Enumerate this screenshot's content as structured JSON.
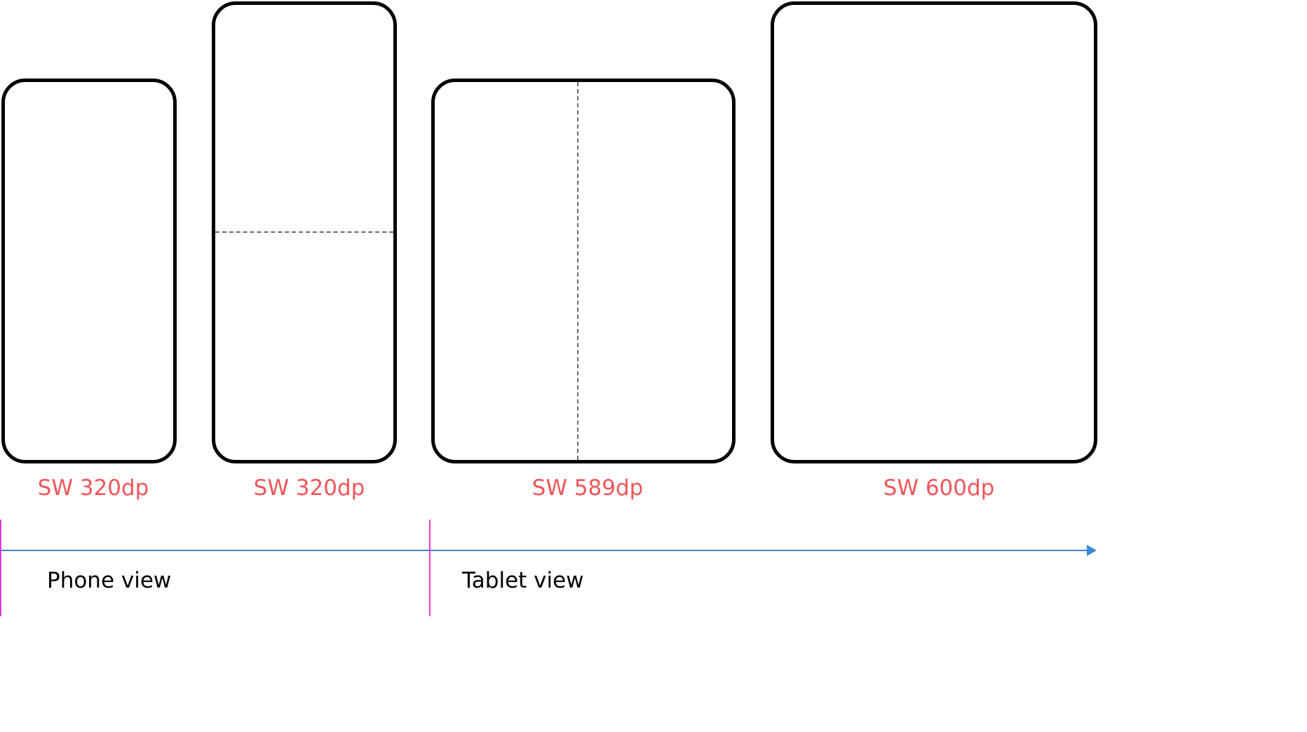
{
  "devices": [
    {
      "label": "SW 320dp",
      "fold": "none"
    },
    {
      "label": "SW 320dp",
      "fold": "horizontal"
    },
    {
      "label": "SW 589dp",
      "fold": "vertical"
    },
    {
      "label": "SW 600dp",
      "fold": "none"
    }
  ],
  "views": {
    "phone": "Phone view",
    "tablet": "Tablet view"
  },
  "colors": {
    "outline": "#000000",
    "fold_line": "#6b6b6b",
    "size_label": "#f2555a",
    "marker": "#e23ad6",
    "arrow": "#3a86d6"
  }
}
